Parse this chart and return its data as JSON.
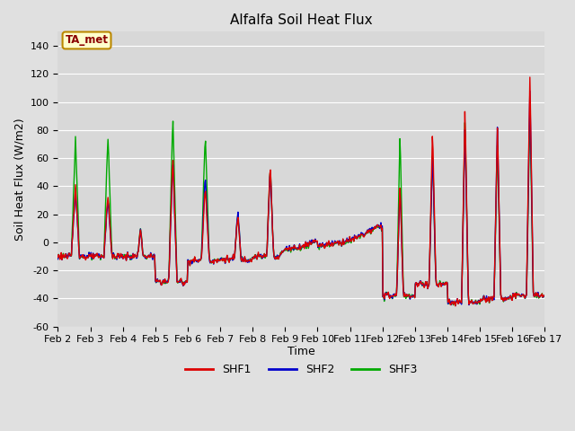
{
  "title": "Alfalfa Soil Heat Flux",
  "ylabel": "Soil Heat Flux (W/m2)",
  "xlabel": "Time",
  "ylim": [
    -60,
    150
  ],
  "yticks": [
    -60,
    -40,
    -20,
    0,
    20,
    40,
    60,
    80,
    100,
    120,
    140
  ],
  "shf1_color": "#dd0000",
  "shf2_color": "#0000cc",
  "shf3_color": "#00aa00",
  "annotation_text": "TA_met",
  "annotation_color": "#8b0000",
  "annotation_bg": "#ffffcc",
  "annotation_edge": "#bb8800",
  "grid_color": "#ffffff",
  "fig_bg": "#e0e0e0",
  "ax_bg": "#d8d8d8",
  "lw": 1.0,
  "title_fontsize": 11,
  "tick_fontsize": 8,
  "label_fontsize": 9
}
